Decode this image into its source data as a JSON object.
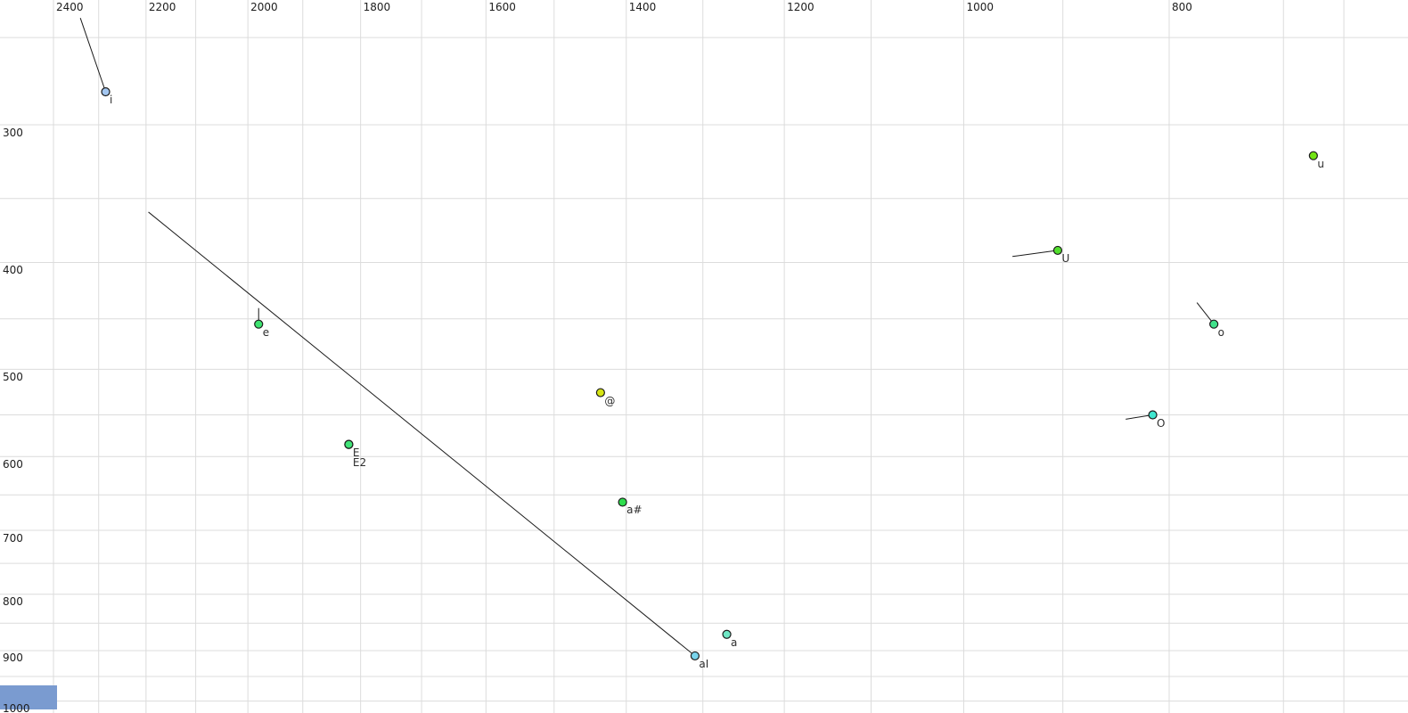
{
  "chart_data": {
    "type": "scatter",
    "title": "",
    "xlabel": "",
    "ylabel": "",
    "description": "Vowel formant plot: F2 on top axis (reversed, Bark-scaled), F1 on left axis (reversed, log-scaled)",
    "x_axis": {
      "position": "top",
      "reversed": true,
      "scale": "bark",
      "range": [
        2525,
        599
      ],
      "major_tick_labels": [
        "2400",
        "2200",
        "2000",
        "1800",
        "1600",
        "1400",
        "1200",
        "1000",
        "800"
      ],
      "major_tick_values": [
        2400,
        2200,
        2000,
        1800,
        1600,
        1400,
        1200,
        1000,
        800
      ],
      "minor_tick_values": [
        2400,
        2300,
        2200,
        2100,
        2000,
        1900,
        1800,
        1700,
        1600,
        1500,
        1400,
        1300,
        1200,
        1100,
        1000,
        900,
        800,
        700,
        650
      ]
    },
    "y_axis": {
      "position": "left",
      "reversed": true,
      "scale": "log",
      "range": [
        231,
        1026
      ],
      "major_tick_labels": [
        "300",
        "400",
        "500",
        "600",
        "700",
        "800",
        "900",
        "1000"
      ],
      "major_tick_values": [
        300,
        400,
        500,
        600,
        700,
        800,
        900,
        1000
      ],
      "minor_tick_values": [
        250,
        300,
        350,
        400,
        450,
        500,
        550,
        600,
        650,
        700,
        750,
        800,
        850,
        900,
        950,
        1000
      ]
    },
    "grid": true,
    "legend": "none",
    "points": [
      {
        "label": "i",
        "f2": 2285,
        "f1": 280,
        "color": "#a3c6f0",
        "onset": {
          "f2": 2340,
          "f1": 240
        }
      },
      {
        "label": "e",
        "f2": 1980,
        "f1": 455,
        "color": "#3ee370",
        "onset": {
          "f2": 1980,
          "f1": 440
        }
      },
      {
        "label": "E2",
        "f2": 1820,
        "f1": 585,
        "color": "#41e478",
        "onset": null,
        "label_dy": 14
      },
      {
        "label": "E",
        "f2": 1820,
        "f1": 585,
        "color": "#41e478",
        "onset": null
      },
      {
        "label": "@",
        "f2": 1435,
        "f1": 525,
        "color": "#d6e414",
        "onset": null
      },
      {
        "label": "a#",
        "f2": 1405,
        "f1": 660,
        "color": "#2edd4d",
        "onset": null
      },
      {
        "label": "aI",
        "f2": 1310,
        "f1": 910,
        "color": "#79d4ec",
        "onset": {
          "f2": 2195,
          "f1": 360
        }
      },
      {
        "label": "a",
        "f2": 1270,
        "f1": 870,
        "color": "#6fe7c5",
        "onset": null
      },
      {
        "label": "O",
        "f2": 815,
        "f1": 550,
        "color": "#3fe6cf",
        "onset": {
          "f2": 840,
          "f1": 555
        }
      },
      {
        "label": "o",
        "f2": 760,
        "f1": 455,
        "color": "#41e18b",
        "onset": {
          "f2": 775,
          "f1": 435
        }
      },
      {
        "label": "U",
        "f2": 905,
        "f1": 390,
        "color": "#52df2e",
        "onset": {
          "f2": 950,
          "f1": 395
        }
      },
      {
        "label": "u",
        "f2": 675,
        "f1": 320,
        "color": "#72e414",
        "onset": null
      }
    ],
    "style": {
      "background": "#ffffff",
      "grid_color": "#dcdcdc",
      "trajectory_color": "#1a1a1a",
      "dot_stroke_color": "#1a1a1a",
      "tick_label_color": "#1c1c1c",
      "point_label_color": "#2e2e2e"
    }
  },
  "corner_patch": {
    "color": "#7a9bd0"
  }
}
